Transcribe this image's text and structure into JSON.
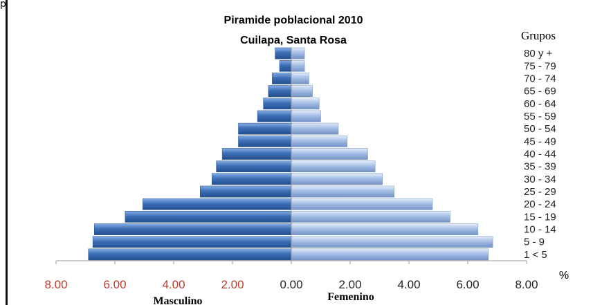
{
  "corner_glyph": "p",
  "colors": {
    "male": "#3d6fb8",
    "male_dark": "#234f8e",
    "male_light": "#86aee4",
    "female": "#a4bee6",
    "female_dark": "#7492c4",
    "female_light": "#e4ecf8",
    "axis": "#9a9a9a",
    "neg_tick": "#c0392b",
    "text": "#222222"
  },
  "chart_data": {
    "type": "bar",
    "orientation": "horizontal",
    "title": "Piramide poblacional 2010",
    "subtitle": "Cuilapa, Santa Rosa",
    "legend_title": "Grupos",
    "unit_label": "%",
    "male_label": "Masculino",
    "female_label": "Femenino",
    "xlim": [
      -8,
      8
    ],
    "xticks": [
      "8.00",
      "6.00",
      "4.00",
      "2.00",
      "0.00",
      "2.00",
      "4.00",
      "6.00",
      "8.00"
    ],
    "categories": [
      "80 y +",
      "75 - 79",
      "70 - 74",
      "65 - 69",
      "60 - 64",
      "55 - 59",
      "50 - 54",
      "45 - 49",
      "40 - 44",
      "35 - 39",
      "30 - 34",
      "25 - 29",
      "20 - 24",
      "15 - 19",
      "10 - 14",
      "5 - 9",
      "1 <  5"
    ],
    "series": [
      {
        "name": "Masculino",
        "values": [
          0.55,
          0.4,
          0.65,
          0.78,
          0.95,
          1.15,
          1.8,
          1.8,
          2.35,
          2.55,
          2.7,
          3.1,
          5.05,
          5.65,
          6.7,
          6.75,
          6.9
        ]
      },
      {
        "name": "Femenino",
        "values": [
          0.45,
          0.45,
          0.6,
          0.72,
          0.95,
          1.0,
          1.6,
          1.9,
          2.6,
          2.85,
          3.1,
          3.5,
          4.8,
          5.4,
          6.35,
          6.85,
          6.7
        ]
      }
    ]
  }
}
